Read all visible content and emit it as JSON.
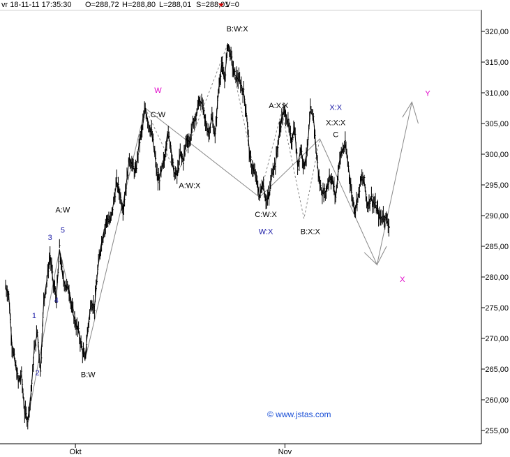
{
  "header": {
    "date_time": "vr 18-11-11 17:35:30",
    "open": "O=288,72",
    "high": "H=288,80",
    "low": "L=288,01",
    "close": "S=288,01",
    "volume": "V=0"
  },
  "watermark": "© www.jstas.com",
  "colors": {
    "price": "#000000",
    "grid": "#bbbbbb",
    "wave": "#888888",
    "blue": "#1a1aa6",
    "magenta": "#e000c8"
  },
  "chart_data": {
    "type": "line",
    "title": "",
    "xlabel": "",
    "ylabel": "",
    "x_ticks": [
      {
        "label": "Okt",
        "bar": 22
      },
      {
        "label": "Nov",
        "bar": 88
      }
    ],
    "ylim": [
      253,
      322
    ],
    "y_ticks": [
      "255,00",
      "260,00",
      "265,00",
      "270,00",
      "275,00",
      "280,00",
      "285,00",
      "290,00",
      "295,00",
      "300,00",
      "305,00",
      "310,00",
      "315,00",
      "320,00"
    ],
    "y_tick_values": [
      255,
      260,
      265,
      270,
      275,
      280,
      285,
      290,
      295,
      300,
      305,
      310,
      315,
      320
    ],
    "price_path": [
      [
        0,
        278.5
      ],
      [
        1,
        277.0
      ],
      [
        2,
        269.0
      ],
      [
        3,
        266.0
      ],
      [
        4,
        263.0
      ],
      [
        5,
        264.0
      ],
      [
        6,
        258.0
      ],
      [
        7,
        256.8
      ],
      [
        8,
        261.0
      ],
      [
        9,
        268.0
      ],
      [
        10,
        271.0
      ],
      [
        11,
        264.5
      ],
      [
        12,
        276.0
      ],
      [
        13,
        279.5
      ],
      [
        14,
        283.5
      ],
      [
        15,
        279.0
      ],
      [
        16,
        276.5
      ],
      [
        17,
        284.5
      ],
      [
        18,
        280.0
      ],
      [
        19,
        278.5
      ],
      [
        20,
        278.0
      ],
      [
        21,
        274.5
      ],
      [
        22,
        272.5
      ],
      [
        23,
        271.0
      ],
      [
        24,
        268.5
      ],
      [
        25,
        266.5
      ],
      [
        26,
        272.0
      ],
      [
        27,
        276.0
      ],
      [
        28,
        275.0
      ],
      [
        29,
        281.0
      ],
      [
        30,
        285.0
      ],
      [
        31,
        287.5
      ],
      [
        32,
        289.5
      ],
      [
        33,
        289.0
      ],
      [
        34,
        292.0
      ],
      [
        35,
        295.5
      ],
      [
        36,
        293.5
      ],
      [
        37,
        291.0
      ],
      [
        38,
        295.0
      ],
      [
        39,
        299.5
      ],
      [
        40,
        298.0
      ],
      [
        41,
        297.0
      ],
      [
        42,
        301.5
      ],
      [
        43,
        304.0
      ],
      [
        44,
        307.5
      ],
      [
        45,
        305.0
      ],
      [
        46,
        303.5
      ],
      [
        47,
        300.0
      ],
      [
        48,
        295.5
      ],
      [
        49,
        297.0
      ],
      [
        50,
        299.0
      ],
      [
        51,
        303.5
      ],
      [
        52,
        301.5
      ],
      [
        53,
        297.0
      ],
      [
        54,
        296.5
      ],
      [
        55,
        300.0
      ],
      [
        56,
        299.0
      ],
      [
        57,
        302.5
      ],
      [
        58,
        302.0
      ],
      [
        59,
        305.0
      ],
      [
        60,
        306.0
      ],
      [
        61,
        309.0
      ],
      [
        62,
        308.0
      ],
      [
        63,
        305.0
      ],
      [
        64,
        303.5
      ],
      [
        65,
        306.0
      ],
      [
        66,
        303.0
      ],
      [
        67,
        310.0
      ],
      [
        68,
        314.5
      ],
      [
        69,
        312.0
      ],
      [
        70,
        318.0
      ],
      [
        71,
        316.0
      ],
      [
        72,
        313.0
      ],
      [
        73,
        312.5
      ],
      [
        74,
        311.5
      ],
      [
        75,
        310.0
      ],
      [
        76,
        306.0
      ],
      [
        77,
        299.0
      ],
      [
        78,
        297.5
      ],
      [
        79,
        296.0
      ],
      [
        80,
        293.0
      ],
      [
        81,
        295.5
      ],
      [
        82,
        292.5
      ],
      [
        83,
        293.0
      ],
      [
        84,
        297.5
      ],
      [
        85,
        298.5
      ],
      [
        86,
        302.5
      ],
      [
        87,
        306.0
      ],
      [
        88,
        307.0
      ],
      [
        89,
        305.0
      ],
      [
        90,
        302.0
      ],
      [
        91,
        304.5
      ],
      [
        92,
        298.0
      ],
      [
        93,
        301.0
      ],
      [
        94,
        298.0
      ],
      [
        95,
        300.5
      ],
      [
        96,
        307.0
      ],
      [
        97,
        306.0
      ],
      [
        98,
        299.5
      ],
      [
        99,
        295.0
      ],
      [
        100,
        293.5
      ],
      [
        101,
        294.0
      ],
      [
        102,
        296.5
      ],
      [
        103,
        295.5
      ],
      [
        104,
        293.0
      ],
      [
        105,
        298.5
      ],
      [
        106,
        300.5
      ],
      [
        107,
        301.5
      ],
      [
        108,
        298.0
      ],
      [
        109,
        293.5
      ],
      [
        110,
        291.0
      ],
      [
        111,
        293.0
      ],
      [
        112,
        296.0
      ],
      [
        113,
        295.5
      ],
      [
        114,
        291.5
      ],
      [
        115,
        293.0
      ],
      [
        116,
        292.0
      ],
      [
        117,
        291.0
      ],
      [
        118,
        289.5
      ],
      [
        119,
        290.0
      ],
      [
        120,
        289.5
      ],
      [
        121,
        288.0
      ]
    ],
    "wave_lines": [
      {
        "style": "solid",
        "points": [
          [
            7,
            256.8
          ],
          [
            17,
            284.5
          ],
          [
            25,
            266.5
          ],
          [
            44,
            307.5
          ],
          [
            80,
            293.0
          ],
          [
            99,
            302.5
          ],
          [
            117,
            282.0
          ],
          [
            128,
            308.5
          ]
        ]
      },
      {
        "style": "dashed",
        "points": [
          [
            44,
            307.5
          ],
          [
            54,
            296.5
          ],
          [
            70,
            318.0
          ],
          [
            80,
            293.0
          ],
          [
            87,
            307.0
          ],
          [
            94,
            289.5
          ],
          [
            99,
            302.5
          ]
        ]
      },
      {
        "style": "solid",
        "points": [
          [
            113,
            284.0
          ],
          [
            117,
            282.0
          ],
          [
            120,
            285.0
          ]
        ]
      },
      {
        "style": "solid",
        "points": [
          [
            125,
            306.0
          ],
          [
            128,
            308.5
          ],
          [
            130,
            305.0
          ]
        ]
      }
    ],
    "labels": [
      {
        "text": "1",
        "bar": 9,
        "price": 273.3,
        "color": "blue",
        "size": 11
      },
      {
        "text": "2",
        "bar": 10,
        "price": 264.0,
        "color": "blue",
        "size": 11
      },
      {
        "text": "3",
        "bar": 14,
        "price": 286.0,
        "color": "blue",
        "size": 11
      },
      {
        "text": "4",
        "bar": 16,
        "price": 275.8,
        "color": "blue",
        "size": 11
      },
      {
        "text": "5",
        "bar": 18,
        "price": 287.2,
        "color": "blue",
        "size": 11
      },
      {
        "text": "A:W",
        "bar": 18,
        "price": 290.5,
        "color": "black",
        "size": 11
      },
      {
        "text": "B:W",
        "bar": 26,
        "price": 263.7,
        "color": "black",
        "size": 11
      },
      {
        "text": "C:W",
        "bar": 48,
        "price": 306.0,
        "color": "black",
        "size": 11
      },
      {
        "text": "W",
        "bar": 48,
        "price": 310.0,
        "color": "magenta",
        "size": 18
      },
      {
        "text": "A:W:X",
        "bar": 58,
        "price": 294.5,
        "color": "black",
        "size": 11
      },
      {
        "text": "B:W:X",
        "bar": 73,
        "price": 320.0,
        "color": "black",
        "size": 11
      },
      {
        "text": "C:W:X",
        "bar": 82,
        "price": 289.8,
        "color": "black",
        "size": 11
      },
      {
        "text": "W:X",
        "bar": 82,
        "price": 287.0,
        "color": "blue",
        "size": 12
      },
      {
        "text": "A:X:X",
        "bar": 86,
        "price": 307.5,
        "color": "black",
        "size": 11
      },
      {
        "text": "B:X:X",
        "bar": 96,
        "price": 287.0,
        "color": "black",
        "size": 11
      },
      {
        "text": "X:X",
        "bar": 104,
        "price": 307.2,
        "color": "blue",
        "size": 12
      },
      {
        "text": "X:X:X",
        "bar": 104,
        "price": 304.7,
        "color": "black",
        "size": 11
      },
      {
        "text": "C",
        "bar": 104,
        "price": 302.8,
        "color": "black",
        "size": 11
      },
      {
        "text": "X",
        "bar": 125,
        "price": 279.2,
        "color": "magenta",
        "size": 22
      },
      {
        "text": "Y",
        "bar": 133,
        "price": 309.5,
        "color": "magenta",
        "size": 18
      }
    ]
  }
}
